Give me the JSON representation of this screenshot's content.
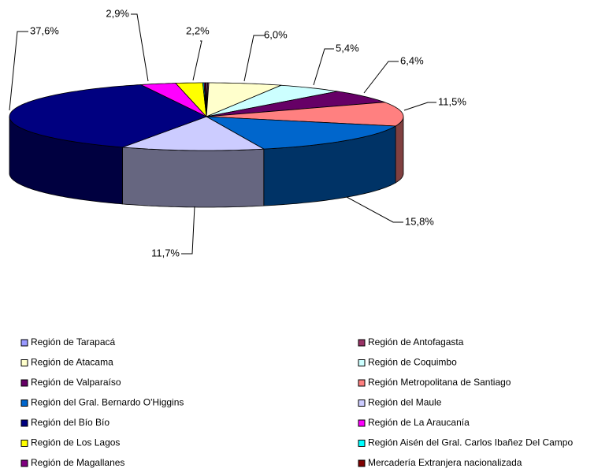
{
  "chart_data": {
    "type": "pie3d",
    "categories": [
      "Región de Tarapacá",
      "Región de Antofagasta",
      "Región de Atacama",
      "Región de Coquimbo",
      "Región de Valparaíso",
      "Región Metropolitana de Santiago",
      "Región del Gral. Bernardo O'Higgins",
      "Región del Maule",
      "Región del Bío Bío",
      "Región de La Araucanía",
      "Región de Los Lagos",
      "Región Aisén del Gral. Carlos Ibañez Del Campo",
      "Región de Magallanes",
      "Mercadería Extranjera nacionalizada"
    ],
    "values": [
      0.1,
      0.1,
      6.0,
      5.4,
      6.4,
      11.5,
      15.8,
      11.7,
      37.6,
      2.9,
      2.2,
      0.1,
      0.1,
      0.1
    ],
    "value_labels": [
      null,
      null,
      "6,0%",
      "5,4%",
      "6,4%",
      "11,5%",
      "15,8%",
      "11,7%",
      "37,6%",
      "2,9%",
      "2,2%",
      null,
      null,
      null
    ],
    "colors": [
      "#9999ff",
      "#993366",
      "#ffffcc",
      "#ccffff",
      "#660066",
      "#ff8080",
      "#0066cc",
      "#ccccff",
      "#000080",
      "#ff00ff",
      "#ffff00",
      "#00ffff",
      "#800080",
      "#800000"
    ],
    "legend": "bottom"
  }
}
